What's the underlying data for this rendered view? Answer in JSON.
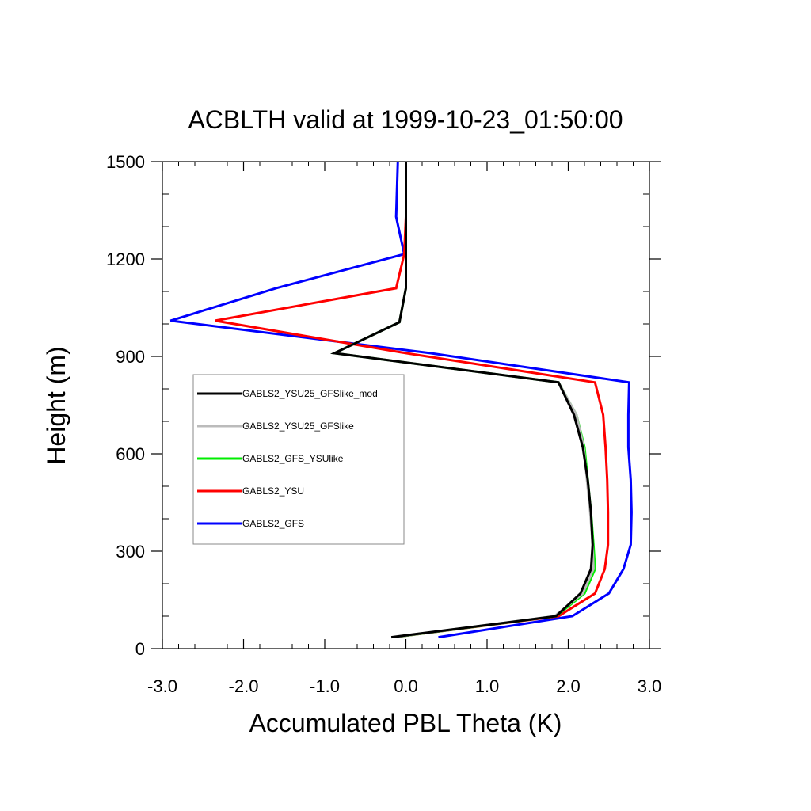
{
  "chart_data": {
    "type": "line",
    "title": "ACBLTH valid at 1999-10-23_01:50:00",
    "xlabel": "Accumulated PBL Theta (K)",
    "ylabel": "Height (m)",
    "xlim": [
      -3.0,
      3.0
    ],
    "ylim": [
      0,
      1500
    ],
    "x_ticks": [
      "-3.0",
      "-2.0",
      "-1.0",
      "0.0",
      "1.0",
      "2.0",
      "3.0"
    ],
    "y_ticks": [
      "0",
      "300",
      "600",
      "900",
      "1200",
      "1500"
    ],
    "x_tick_values": [
      -3,
      -2,
      -1,
      0,
      1,
      2,
      3
    ],
    "y_tick_values": [
      0,
      300,
      600,
      900,
      1200,
      1500
    ],
    "grid": false,
    "legend_position": "left-center",
    "series": [
      {
        "name": "GABLS2_GFS",
        "color": "#0000ff",
        "points": [
          [
            0.4,
            35
          ],
          [
            2.05,
            100
          ],
          [
            2.5,
            170
          ],
          [
            2.68,
            245
          ],
          [
            2.77,
            320
          ],
          [
            2.78,
            420
          ],
          [
            2.77,
            520
          ],
          [
            2.74,
            620
          ],
          [
            2.74,
            720
          ],
          [
            2.75,
            820
          ],
          [
            0.3,
            910
          ],
          [
            -2.9,
            1010
          ],
          [
            -1.6,
            1110
          ],
          [
            -0.02,
            1215
          ],
          [
            -0.12,
            1330
          ],
          [
            -0.1,
            1500
          ]
        ]
      },
      {
        "name": "GABLS2_YSU",
        "color": "#ff0000",
        "points": [
          [
            -0.15,
            35
          ],
          [
            1.88,
            100
          ],
          [
            2.33,
            170
          ],
          [
            2.45,
            245
          ],
          [
            2.49,
            320
          ],
          [
            2.49,
            420
          ],
          [
            2.48,
            520
          ],
          [
            2.46,
            620
          ],
          [
            2.43,
            720
          ],
          [
            2.33,
            820
          ],
          [
            0.0,
            910
          ],
          [
            -2.35,
            1010
          ],
          [
            -0.12,
            1110
          ],
          [
            -0.02,
            1215
          ],
          [
            0.0,
            1330
          ],
          [
            0.0,
            1500
          ]
        ]
      },
      {
        "name": "GABLS2_GFS_YSUlike",
        "color": "#00ee00",
        "points": [
          [
            -0.15,
            35
          ],
          [
            1.85,
            100
          ],
          [
            2.2,
            170
          ],
          [
            2.33,
            245
          ],
          [
            2.31,
            320
          ],
          [
            2.28,
            420
          ],
          [
            2.24,
            520
          ],
          [
            2.2,
            620
          ],
          [
            2.1,
            720
          ],
          [
            1.88,
            820
          ],
          [
            -0.88,
            910
          ],
          [
            -0.08,
            1005
          ],
          [
            0.0,
            1110
          ],
          [
            0.0,
            1215
          ],
          [
            0.0,
            1330
          ],
          [
            0.0,
            1500
          ]
        ]
      },
      {
        "name": "GABLS2_YSU25_GFSlike",
        "color": "#bbbbbb",
        "points": [
          [
            -0.15,
            35
          ],
          [
            1.83,
            100
          ],
          [
            2.18,
            170
          ],
          [
            2.31,
            245
          ],
          [
            2.3,
            320
          ],
          [
            2.27,
            420
          ],
          [
            2.23,
            520
          ],
          [
            2.19,
            620
          ],
          [
            2.1,
            720
          ],
          [
            1.88,
            820
          ],
          [
            -0.88,
            910
          ],
          [
            -0.08,
            1005
          ],
          [
            0.0,
            1110
          ],
          [
            0.0,
            1215
          ],
          [
            0.0,
            1330
          ],
          [
            0.0,
            1500
          ]
        ]
      },
      {
        "name": "GABLS2_YSU25_GFSlike_mod",
        "color": "#000000",
        "points": [
          [
            -0.18,
            35
          ],
          [
            1.85,
            100
          ],
          [
            2.15,
            170
          ],
          [
            2.28,
            245
          ],
          [
            2.3,
            320
          ],
          [
            2.28,
            420
          ],
          [
            2.24,
            520
          ],
          [
            2.18,
            620
          ],
          [
            2.07,
            720
          ],
          [
            1.88,
            820
          ],
          [
            -0.88,
            910
          ],
          [
            -0.08,
            1005
          ],
          [
            0.0,
            1110
          ],
          [
            0.0,
            1215
          ],
          [
            0.0,
            1330
          ],
          [
            0.0,
            1500
          ]
        ]
      }
    ],
    "legend_order": [
      "GABLS2_YSU25_GFSlike_mod",
      "GABLS2_YSU25_GFSlike",
      "GABLS2_GFS_YSUlike",
      "GABLS2_YSU",
      "GABLS2_GFS"
    ]
  }
}
